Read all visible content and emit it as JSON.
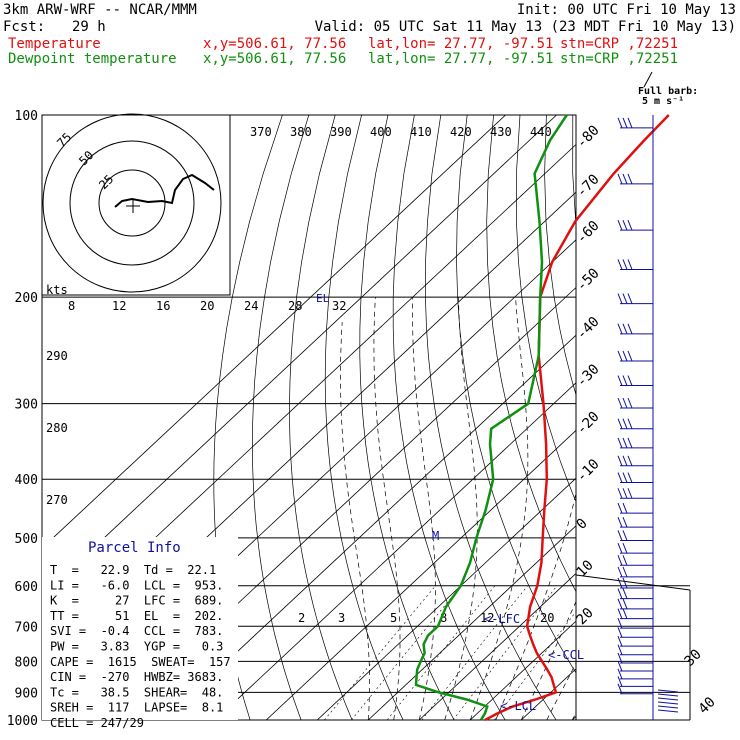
{
  "header": {
    "model": "3km ARW-WRF -- NCAR/MMM",
    "init": "Init: 00 UTC Fri 10 May 13",
    "fcst_label": "Fcst:",
    "fcst_value": "29 h",
    "valid": "Valid: 05 UTC Sat 11 May 13 (23 MDT Fri 10 May 13)",
    "temperature_label": "Temperature",
    "dewpoint_label": "Dewpoint temperature",
    "xy": "x,y=506.61, 77.56",
    "latlon": "lat,lon= 27.77, -97.51",
    "stn": "stn=CRP ,72251"
  },
  "wind_legend": {
    "line1": "Full barb:",
    "line2": "5 m s⁻¹"
  },
  "colors": {
    "temperature": "#e01010",
    "dewpoint": "#109010",
    "parcel_info_title": "#1010a0",
    "wind_barbs": "#1010a0",
    "grid": "#000000"
  },
  "hodograph": {
    "units": "kts",
    "ring_labels": [
      "75",
      "50",
      "25"
    ]
  },
  "parcel_info": {
    "title": "Parcel Info",
    "rows": [
      "T  =   22.9  Td =  22.1",
      "LI =   -6.0  LCL =  953.",
      "K  =     27  LFC =  689.",
      "TT =     51  EL  =  202.",
      "SVI =  -0.4  CCL =  783.",
      "PW =   3.83  YGP =   0.3",
      "CAPE =  1615  SWEAT=  157",
      "CIN =  -270  HWBZ= 3683.",
      "Tc =   38.5  SHEAR=  48.",
      "SREH =  117  LAPSE=  8.1",
      "CELL = 247/29"
    ]
  },
  "annotations": {
    "lfc": "<-LFC",
    "ccl": "<-CCL",
    "lcl": "<-LCL",
    "el": "EL",
    "m": "M"
  },
  "chart_data": {
    "type": "line",
    "title": "",
    "xlabel": "",
    "ylabel": "",
    "y_scale": "log pressure",
    "pressure_ticks": [
      100,
      200,
      300,
      400,
      500,
      600,
      700,
      800,
      900,
      1000
    ],
    "temperature_ticks": [
      -80,
      -70,
      -60,
      -50,
      -40,
      -30,
      -20,
      -10,
      0,
      10,
      20,
      30,
      40
    ],
    "theta_ticks": [
      370,
      380,
      390,
      400,
      410,
      420,
      430,
      440
    ],
    "theta_lower_ticks": [
      290,
      280,
      270
    ],
    "mixing_ratio_top_ticks": [
      "8",
      "12",
      "16",
      "20",
      "24",
      "28",
      "32"
    ],
    "mixing_ratio_bottom_ticks": [
      "2",
      "3",
      "5",
      "8",
      "12",
      "20"
    ],
    "series": [
      {
        "name": "Temperature",
        "pressure": [
          1000,
          975,
          950,
          925,
          900,
          875,
          850,
          825,
          800,
          775,
          750,
          725,
          700,
          650,
          600,
          550,
          500,
          450,
          400,
          350,
          300,
          250,
          200,
          175,
          150,
          125,
          110,
          100
        ],
        "values": [
          22.9,
          24.0,
          25.5,
          28.5,
          31.0,
          29.0,
          27.0,
          24.5,
          21.8,
          19.0,
          16.5,
          14.0,
          11.5,
          8.0,
          5.0,
          1.0,
          -4.0,
          -9.5,
          -15.5,
          -23.0,
          -32.0,
          -43.0,
          -55.0,
          -60.0,
          -64.0,
          -66.5,
          -67.5,
          -68.0
        ]
      },
      {
        "name": "Dewpoint temperature",
        "pressure": [
          1000,
          975,
          950,
          925,
          900,
          875,
          850,
          825,
          800,
          775,
          750,
          725,
          700,
          650,
          600,
          550,
          500,
          450,
          400,
          350,
          330,
          300,
          250,
          200,
          175,
          150,
          125,
          110,
          100
        ],
        "values": [
          22.1,
          21.5,
          20.5,
          15.0,
          8.0,
          2.0,
          0.5,
          -1.0,
          -2.0,
          -3.0,
          -5.0,
          -6.0,
          -6.0,
          -8.5,
          -10.0,
          -13.0,
          -17.0,
          -21.0,
          -26.0,
          -34.0,
          -37.0,
          -35.0,
          -43.0,
          -55.0,
          -62.0,
          -71.0,
          -82.0,
          -86.0,
          -88.0
        ]
      }
    ]
  }
}
